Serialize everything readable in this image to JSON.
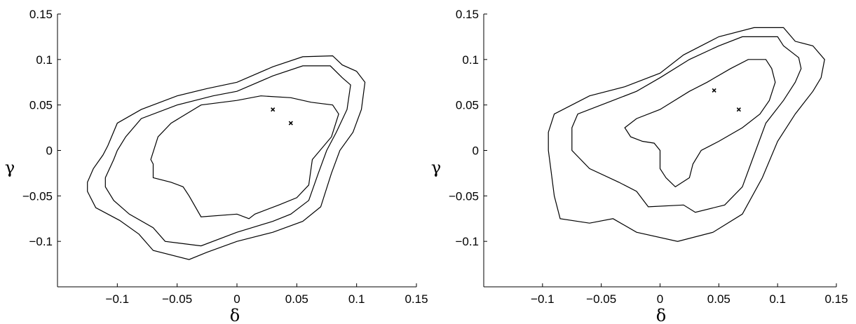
{
  "chart_data": [
    {
      "type": "contour",
      "xlabel": "δ",
      "ylabel": "γ",
      "xlim": [
        -0.15,
        0.15
      ],
      "ylim": [
        -0.15,
        0.15
      ],
      "xticks": [
        -0.1,
        -0.05,
        0,
        0.05,
        0.1,
        0.15
      ],
      "xtick_labels": [
        "−0.1",
        "−0.05",
        "0",
        "0.05",
        "0.1",
        "0.15"
      ],
      "yticks": [
        -0.1,
        -0.05,
        0,
        0.05,
        0.1,
        0.15
      ],
      "ytick_labels": [
        "−0.1",
        "−0.05",
        "0",
        "0.05",
        "0.1",
        "0.15"
      ],
      "grid": false,
      "markers": [
        {
          "x": 0.03,
          "y": 0.045,
          "symbol": "x"
        },
        {
          "x": 0.045,
          "y": 0.03,
          "symbol": "x"
        }
      ],
      "contours": [
        [
          [
            -0.125,
            -0.035
          ],
          [
            -0.12,
            -0.02
          ],
          [
            -0.112,
            -0.005
          ],
          [
            -0.108,
            0.005
          ],
          [
            -0.1,
            0.03
          ],
          [
            -0.08,
            0.045
          ],
          [
            -0.05,
            0.06
          ],
          [
            -0.025,
            0.068
          ],
          [
            0.0,
            0.075
          ],
          [
            0.03,
            0.092
          ],
          [
            0.055,
            0.103
          ],
          [
            0.08,
            0.104
          ],
          [
            0.088,
            0.094
          ],
          [
            0.1,
            0.087
          ],
          [
            0.107,
            0.075
          ],
          [
            0.104,
            0.045
          ],
          [
            0.097,
            0.02
          ],
          [
            0.086,
            0.0
          ],
          [
            0.079,
            -0.025
          ],
          [
            0.07,
            -0.062
          ],
          [
            0.055,
            -0.078
          ],
          [
            0.03,
            -0.09
          ],
          [
            0.0,
            -0.1
          ],
          [
            -0.025,
            -0.112
          ],
          [
            -0.04,
            -0.12
          ],
          [
            -0.07,
            -0.11
          ],
          [
            -0.082,
            -0.092
          ],
          [
            -0.098,
            -0.077
          ],
          [
            -0.118,
            -0.063
          ],
          [
            -0.125,
            -0.045
          ],
          [
            -0.125,
            -0.035
          ]
        ],
        [
          [
            -0.11,
            -0.03
          ],
          [
            -0.103,
            -0.01
          ],
          [
            -0.1,
            0.0
          ],
          [
            -0.093,
            0.015
          ],
          [
            -0.08,
            0.035
          ],
          [
            -0.05,
            0.05
          ],
          [
            -0.02,
            0.06
          ],
          [
            0.0,
            0.065
          ],
          [
            0.03,
            0.082
          ],
          [
            0.055,
            0.093
          ],
          [
            0.078,
            0.093
          ],
          [
            0.088,
            0.08
          ],
          [
            0.095,
            0.072
          ],
          [
            0.092,
            0.045
          ],
          [
            0.083,
            0.02
          ],
          [
            0.075,
            0.0
          ],
          [
            0.068,
            -0.025
          ],
          [
            0.06,
            -0.055
          ],
          [
            0.045,
            -0.07
          ],
          [
            0.03,
            -0.078
          ],
          [
            0.0,
            -0.09
          ],
          [
            -0.03,
            -0.105
          ],
          [
            -0.06,
            -0.1
          ],
          [
            -0.07,
            -0.085
          ],
          [
            -0.09,
            -0.07
          ],
          [
            -0.103,
            -0.055
          ],
          [
            -0.11,
            -0.04
          ],
          [
            -0.11,
            -0.03
          ]
        ],
        [
          [
            -0.07,
            -0.015
          ],
          [
            -0.072,
            -0.01
          ],
          [
            -0.066,
            0.015
          ],
          [
            -0.055,
            0.03
          ],
          [
            -0.03,
            0.05
          ],
          [
            0.0,
            0.055
          ],
          [
            0.02,
            0.06
          ],
          [
            0.045,
            0.058
          ],
          [
            0.062,
            0.053
          ],
          [
            0.08,
            0.05
          ],
          [
            0.085,
            0.04
          ],
          [
            0.079,
            0.015
          ],
          [
            0.063,
            -0.01
          ],
          [
            0.06,
            -0.038
          ],
          [
            0.05,
            -0.052
          ],
          [
            0.035,
            -0.06
          ],
          [
            0.015,
            -0.07
          ],
          [
            0.01,
            -0.075
          ],
          [
            0.0,
            -0.07
          ],
          [
            -0.03,
            -0.073
          ],
          [
            -0.04,
            -0.05
          ],
          [
            -0.045,
            -0.04
          ],
          [
            -0.055,
            -0.035
          ],
          [
            -0.07,
            -0.03
          ],
          [
            -0.07,
            -0.015
          ]
        ]
      ]
    },
    {
      "type": "contour",
      "xlabel": "δ",
      "ylabel": "γ",
      "xlim": [
        -0.15,
        0.15
      ],
      "ylim": [
        -0.15,
        0.15
      ],
      "xticks": [
        -0.1,
        -0.05,
        0,
        0.05,
        0.1,
        0.15
      ],
      "xtick_labels": [
        "−0.1",
        "−0.05",
        "0",
        "0.05",
        "0.1",
        "0.15"
      ],
      "yticks": [
        -0.1,
        -0.05,
        0,
        0.05,
        0.1,
        0.15
      ],
      "ytick_labels": [
        "−0.1",
        "−0.05",
        "0",
        "0.05",
        "0.1",
        "0.15"
      ],
      "grid": false,
      "markers": [
        {
          "x": 0.046,
          "y": 0.066,
          "symbol": "x"
        },
        {
          "x": 0.067,
          "y": 0.045,
          "symbol": "x"
        }
      ],
      "contours": [
        [
          [
            -0.095,
            0.02
          ],
          [
            -0.09,
            0.04
          ],
          [
            -0.06,
            0.06
          ],
          [
            -0.03,
            0.07
          ],
          [
            0.0,
            0.085
          ],
          [
            0.02,
            0.105
          ],
          [
            0.05,
            0.125
          ],
          [
            0.08,
            0.135
          ],
          [
            0.105,
            0.135
          ],
          [
            0.115,
            0.12
          ],
          [
            0.13,
            0.115
          ],
          [
            0.14,
            0.1
          ],
          [
            0.137,
            0.08
          ],
          [
            0.13,
            0.065
          ],
          [
            0.115,
            0.04
          ],
          [
            0.1,
            0.01
          ],
          [
            0.087,
            -0.03
          ],
          [
            0.07,
            -0.07
          ],
          [
            0.045,
            -0.09
          ],
          [
            0.015,
            -0.1
          ],
          [
            -0.02,
            -0.09
          ],
          [
            -0.04,
            -0.075
          ],
          [
            -0.06,
            -0.08
          ],
          [
            -0.085,
            -0.075
          ],
          [
            -0.09,
            -0.05
          ],
          [
            -0.093,
            -0.02
          ],
          [
            -0.095,
            0.0
          ],
          [
            -0.095,
            0.02
          ]
        ],
        [
          [
            -0.075,
            0.025
          ],
          [
            -0.07,
            0.04
          ],
          [
            -0.04,
            0.055
          ],
          [
            -0.02,
            0.065
          ],
          [
            0.0,
            0.08
          ],
          [
            0.025,
            0.1
          ],
          [
            0.05,
            0.115
          ],
          [
            0.07,
            0.125
          ],
          [
            0.1,
            0.125
          ],
          [
            0.105,
            0.115
          ],
          [
            0.118,
            0.102
          ],
          [
            0.12,
            0.09
          ],
          [
            0.115,
            0.075
          ],
          [
            0.105,
            0.055
          ],
          [
            0.09,
            0.03
          ],
          [
            0.08,
            -0.005
          ],
          [
            0.07,
            -0.04
          ],
          [
            0.055,
            -0.06
          ],
          [
            0.03,
            -0.068
          ],
          [
            0.02,
            -0.06
          ],
          [
            -0.01,
            -0.062
          ],
          [
            -0.02,
            -0.045
          ],
          [
            -0.035,
            -0.035
          ],
          [
            -0.06,
            -0.02
          ],
          [
            -0.075,
            0.0
          ],
          [
            -0.075,
            0.025
          ]
        ],
        [
          [
            -0.03,
            0.025
          ],
          [
            -0.02,
            0.035
          ],
          [
            0.0,
            0.045
          ],
          [
            0.025,
            0.065
          ],
          [
            0.04,
            0.075
          ],
          [
            0.06,
            0.09
          ],
          [
            0.075,
            0.1
          ],
          [
            0.09,
            0.1
          ],
          [
            0.095,
            0.09
          ],
          [
            0.098,
            0.075
          ],
          [
            0.093,
            0.055
          ],
          [
            0.085,
            0.04
          ],
          [
            0.07,
            0.025
          ],
          [
            0.05,
            0.01
          ],
          [
            0.035,
            0.0
          ],
          [
            0.028,
            -0.015
          ],
          [
            0.025,
            -0.03
          ],
          [
            0.013,
            -0.04
          ],
          [
            0.005,
            -0.03
          ],
          [
            0.0,
            -0.02
          ],
          [
            0.0,
            0.0
          ],
          [
            -0.005,
            0.008
          ],
          [
            -0.015,
            0.01
          ],
          [
            -0.025,
            0.015
          ],
          [
            -0.03,
            0.025
          ]
        ]
      ]
    }
  ]
}
